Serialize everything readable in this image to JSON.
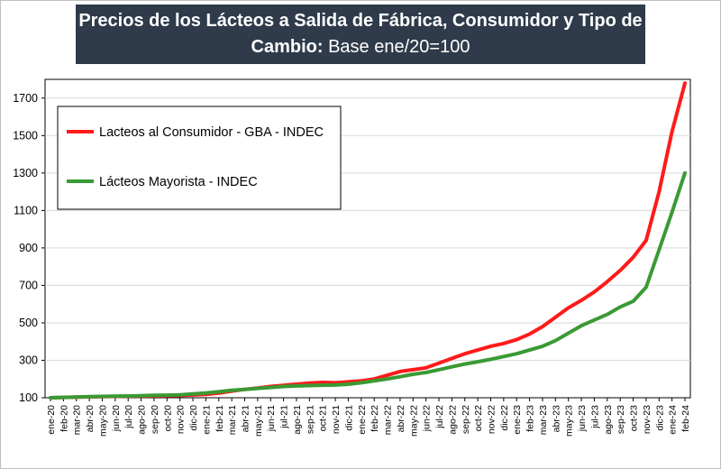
{
  "title": {
    "line1": "Precios de los Lácteos a Salida de Fábrica, Consumidor y Tipo de",
    "line2_bold": "Cambio:",
    "line2_rest": " Base ene/20=100"
  },
  "colors": {
    "title_bg": "#2f3b4a",
    "consumidor": "#ff1a1a",
    "mayorista": "#3a9a34"
  },
  "chart_data": {
    "type": "line",
    "title": "Precios de los Lácteos a Salida de Fábrica, Consumidor y Tipo de Cambio: Base ene/20=100",
    "xlabel": "",
    "ylabel": "",
    "ylim": [
      100,
      1800
    ],
    "yticks": [
      100,
      300,
      500,
      700,
      900,
      1100,
      1300,
      1500,
      1700
    ],
    "grid": true,
    "legend_position": "top-left",
    "categories": [
      "ene-20",
      "feb-20",
      "mar-20",
      "abr-20",
      "may-20",
      "jun-20",
      "jul-20",
      "ago-20",
      "sep-20",
      "oct-20",
      "nov-20",
      "dic-20",
      "ene-21",
      "feb-21",
      "mar-21",
      "abr-21",
      "may-21",
      "jun-21",
      "jul-21",
      "ago-21",
      "sep-21",
      "oct-21",
      "nov-21",
      "dic-21",
      "ene-22",
      "feb-22",
      "mar-22",
      "abr-22",
      "may-22",
      "jun-22",
      "jul-22",
      "ago-22",
      "sep-22",
      "oct-22",
      "nov-22",
      "dic-22",
      "ene-23",
      "feb-23",
      "mar-23",
      "abr-23",
      "may-23",
      "jun-23",
      "jul-23",
      "ago-23",
      "sep-23",
      "oct-23",
      "nov-23",
      "dic-23",
      "ene-24",
      "feb-24"
    ],
    "series": [
      {
        "name": "Lacteos al Consumidor - GBA - INDEC",
        "color": "#ff1a1a",
        "values": [
          100,
          102,
          104,
          105,
          106,
          107,
          108,
          109,
          110,
          111,
          112,
          115,
          118,
          125,
          135,
          145,
          152,
          160,
          166,
          172,
          178,
          182,
          180,
          185,
          190,
          200,
          220,
          240,
          250,
          260,
          285,
          310,
          335,
          355,
          375,
          390,
          410,
          440,
          480,
          530,
          580,
          620,
          665,
          720,
          780,
          850,
          940,
          1200,
          1520,
          1780
        ]
      },
      {
        "name": "Lácteos Mayorista - INDEC",
        "color": "#3a9a34",
        "values": [
          100,
          102,
          104,
          106,
          107,
          108,
          109,
          111,
          113,
          114,
          116,
          120,
          125,
          132,
          140,
          145,
          150,
          155,
          160,
          163,
          165,
          167,
          168,
          172,
          180,
          190,
          200,
          212,
          225,
          235,
          250,
          265,
          280,
          292,
          305,
          320,
          335,
          355,
          375,
          405,
          445,
          485,
          515,
          545,
          585,
          615,
          690,
          890,
          1090,
          1300
        ]
      }
    ]
  }
}
